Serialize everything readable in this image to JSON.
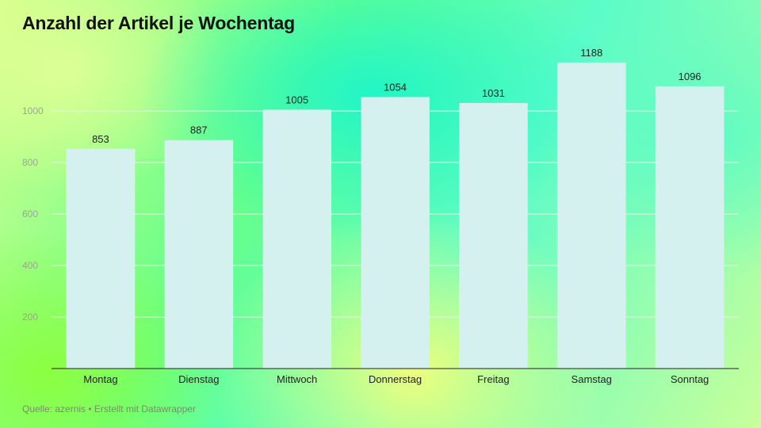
{
  "title": "Anzahl der Artikel je Wochentag",
  "source": "Quelle: azernis • Erstellt mit Datawrapper",
  "colors": {
    "bar": "#d4f1ef",
    "grid": "#e6f5e6",
    "axis": "#222222"
  },
  "chart_data": {
    "type": "bar",
    "title": "Anzahl der Artikel je Wochentag",
    "categories": [
      "Montag",
      "Dienstag",
      "Mittwoch",
      "Donnerstag",
      "Freitag",
      "Samstag",
      "Sonntag"
    ],
    "values": [
      853,
      887,
      1005,
      1054,
      1031,
      1188,
      1096
    ],
    "yticks": [
      200,
      400,
      600,
      800,
      1000
    ],
    "ylim": [
      0,
      1200
    ],
    "xlabel": "",
    "ylabel": "",
    "grid": true,
    "data_labels": true
  }
}
